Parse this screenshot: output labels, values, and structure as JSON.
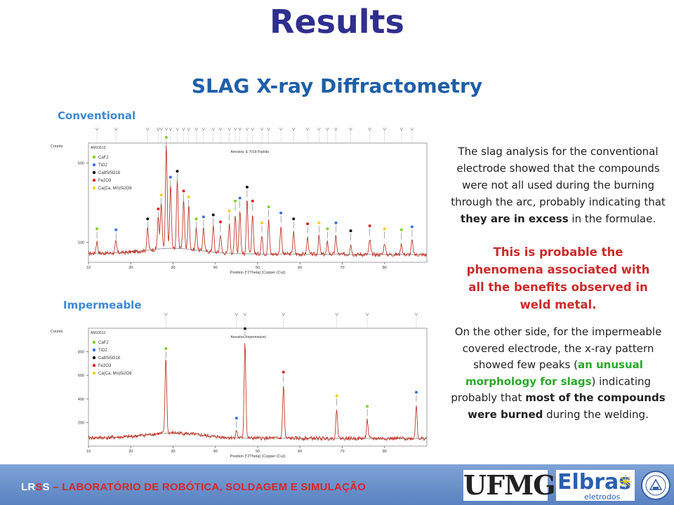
{
  "title": "Results",
  "subtitle": "SLAG X-ray Diffractometry",
  "charts_labels": {
    "conventional": "Conventional",
    "impermeable": "Impermeable"
  },
  "text": {
    "para1_a": "The slag analysis for the conventional electrode showed that the compounds were not all used during the burning through the arc, probably indicating that ",
    "para1_b": "they are in excess",
    "para1_c": " in the formulae.",
    "para2": "This is probable the phenomena associated with all the benefits observed in weld metal.",
    "para3_a": "On the other side, for the impermeable covered electrode, the x-ray pattern showed few peaks (",
    "para3_b": "an unusual morphology for slags",
    "para3_c": ") indicating probably that ",
    "para3_d": "most of the compounds were burned",
    "para3_e": " during the welding."
  },
  "footer": {
    "prefix": "LR",
    "s1": "S",
    "s2": "S",
    "rest": " – LABORATÓRIO DE ROBÓTICA, SOLDAGEM E SIMULAÇÃO"
  },
  "logos": {
    "ufmg": "UFMG",
    "elbras": "Elbras",
    "elbras_sub": "eletrodos"
  },
  "colors": {
    "line": "#c0392b",
    "background_curve": "#9a9a9a",
    "caf2": "#7ed321",
    "tio2": "#3b6fe0",
    "ca8si5o18": "#111111",
    "fe2o3": "#e02020",
    "cacamnsi2o6": "#f0d020"
  },
  "chart_data": [
    {
      "type": "line",
      "id": "AM10613",
      "sample": "Amostra: E 7018 Padrão",
      "ylabel": "Counts",
      "xlabel": "Position [°2Theta] (Copper (Cu))",
      "xlim": [
        10,
        90
      ],
      "ylim": [
        0,
        600
      ],
      "xticks": [
        10,
        20,
        30,
        40,
        50,
        60,
        70,
        80
      ],
      "yticks": [
        100,
        500
      ],
      "legend": [
        "CaF2",
        "TiO2",
        "Ca8Si5O18",
        "Fe2O3",
        "Ca(Ca, Mn)Si2O6"
      ],
      "baseline": 45,
      "peaks": [
        {
          "x": 12,
          "h": 60
        },
        {
          "x": 16.5,
          "h": 55
        },
        {
          "x": 24,
          "h": 110
        },
        {
          "x": 26.5,
          "h": 160
        },
        {
          "x": 27.2,
          "h": 230
        },
        {
          "x": 28.4,
          "h": 520
        },
        {
          "x": 29.4,
          "h": 320
        },
        {
          "x": 31,
          "h": 350
        },
        {
          "x": 32.5,
          "h": 250
        },
        {
          "x": 33.7,
          "h": 220
        },
        {
          "x": 35.5,
          "h": 110
        },
        {
          "x": 37.2,
          "h": 120
        },
        {
          "x": 39.5,
          "h": 130
        },
        {
          "x": 41.2,
          "h": 95
        },
        {
          "x": 43.3,
          "h": 150
        },
        {
          "x": 44.7,
          "h": 200
        },
        {
          "x": 45.8,
          "h": 215
        },
        {
          "x": 47.5,
          "h": 270
        },
        {
          "x": 48.8,
          "h": 200
        },
        {
          "x": 51,
          "h": 90
        },
        {
          "x": 52.6,
          "h": 170
        },
        {
          "x": 55.5,
          "h": 140
        },
        {
          "x": 58.5,
          "h": 110
        },
        {
          "x": 61.8,
          "h": 85
        },
        {
          "x": 64.5,
          "h": 90
        },
        {
          "x": 66.5,
          "h": 60
        },
        {
          "x": 68.5,
          "h": 90
        },
        {
          "x": 72,
          "h": 50
        },
        {
          "x": 76.5,
          "h": 75
        },
        {
          "x": 80,
          "h": 60
        },
        {
          "x": 84,
          "h": 55
        },
        {
          "x": 86.5,
          "h": 70
        }
      ]
    },
    {
      "type": "line",
      "id": "AM10612",
      "sample": "Amostra: Impermeável",
      "ylabel": "Counts",
      "xlabel": "Position [°2Theta] (Copper (Cu))",
      "xlim": [
        10,
        90
      ],
      "ylim": [
        0,
        1000
      ],
      "xticks": [
        10,
        20,
        30,
        40,
        50,
        60,
        70,
        80
      ],
      "yticks": [
        200,
        400,
        600,
        800
      ],
      "legend": [
        "CaF2",
        "TiO2",
        "Ca8Si5O18",
        "Fe2O3",
        "Ca(Ca, Mn)Si2O6"
      ],
      "baseline": 70,
      "peaks": [
        {
          "x": 28.3,
          "h": 650
        },
        {
          "x": 45.0,
          "h": 60
        },
        {
          "x": 47.0,
          "h": 820
        },
        {
          "x": 56.1,
          "h": 450
        },
        {
          "x": 68.7,
          "h": 250
        },
        {
          "x": 75.9,
          "h": 160
        },
        {
          "x": 87.5,
          "h": 280
        }
      ]
    }
  ]
}
